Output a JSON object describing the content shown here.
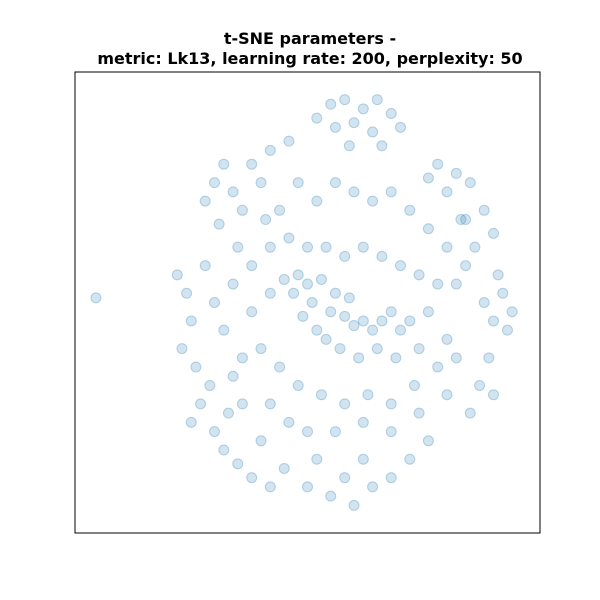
{
  "chart_data": {
    "type": "scatter",
    "title": "t-SNE parameters -\nmetric: Lk13, learning rate: 200, perplexity: 50",
    "color": "#1f77b4",
    "xlim": [
      -50,
      50
    ],
    "ylim": [
      -50,
      50
    ],
    "x": [
      -45.5,
      5,
      8,
      12,
      15,
      18,
      10,
      14,
      6,
      20,
      2,
      16,
      9,
      28,
      32,
      30,
      35,
      26,
      38,
      34,
      40,
      36,
      -18,
      -20,
      -22,
      -16,
      -12,
      -8,
      -4,
      -14,
      -19,
      -10,
      -28,
      -26,
      -25,
      -27,
      -24,
      -22,
      -20,
      -18,
      -21,
      -23,
      42,
      44,
      40,
      43,
      38,
      41,
      39,
      37,
      35,
      40,
      -10,
      -15,
      -12,
      -5,
      0,
      5,
      10,
      8,
      14,
      18,
      22,
      26,
      2,
      -8,
      12,
      -20,
      -17,
      -14,
      -18,
      -25,
      -5,
      -2,
      0,
      3,
      -8,
      -3,
      1,
      5,
      8,
      10,
      12,
      14,
      16,
      18,
      20,
      22,
      6,
      9,
      2,
      -1,
      4,
      7,
      11,
      15,
      19,
      24,
      26,
      28,
      24,
      20,
      16,
      12,
      8,
      4,
      0,
      -4,
      -8,
      -12,
      -12,
      -10,
      -6,
      -2,
      3,
      8,
      13,
      18,
      23,
      28,
      30,
      32,
      30,
      26,
      22,
      18,
      14,
      10,
      6,
      2,
      -2,
      -6,
      -9,
      -15,
      -16,
      -14,
      -16,
      -8,
      -4,
      0,
      6,
      12,
      18,
      24,
      30,
      32,
      34,
      33
    ],
    "y": [
      1,
      43,
      44,
      42,
      44,
      41,
      39,
      37,
      38,
      38,
      40,
      34,
      34,
      30,
      28,
      24,
      26,
      27,
      20,
      18,
      15,
      12,
      30,
      26,
      22,
      24,
      30,
      33,
      35,
      20,
      17,
      26,
      6,
      2,
      -4,
      -10,
      -14,
      8,
      0,
      -6,
      -18,
      -22,
      2,
      -2,
      -4,
      -6,
      0,
      6,
      -12,
      -18,
      -24,
      -20,
      -30,
      -35,
      -38,
      -36,
      -40,
      -42,
      -44,
      -38,
      -40,
      -38,
      -34,
      -30,
      -34,
      -40,
      -34,
      -28,
      -24,
      -22,
      -32,
      -26,
      5,
      6,
      4,
      5,
      2,
      2,
      0,
      -2,
      -3,
      -5,
      -4,
      -6,
      -4,
      -2,
      -6,
      -4,
      2,
      1,
      -6,
      -3,
      -8,
      -10,
      -12,
      -10,
      -12,
      -10,
      -2,
      4,
      6,
      8,
      10,
      12,
      10,
      12,
      12,
      14,
      12,
      8,
      -2,
      -10,
      -14,
      -18,
      -20,
      -22,
      -20,
      -22,
      -18,
      -14,
      -8,
      4,
      12,
      16,
      20,
      24,
      22,
      24,
      26,
      22,
      26,
      20,
      18,
      12,
      4,
      -12,
      -16,
      -22,
      -26,
      -28,
      -28,
      -26,
      -28,
      -24,
      -20,
      -12,
      8,
      18
    ]
  }
}
